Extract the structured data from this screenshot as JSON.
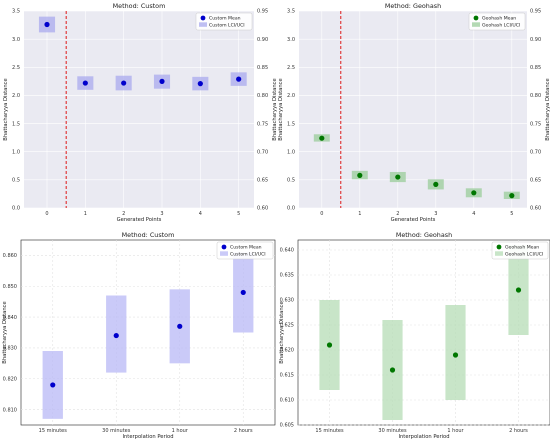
{
  "chart_data": [
    {
      "type": "scatter",
      "title": "Method: Custom",
      "xlabel": "Generated Points",
      "ylabel": "Bhattacharyya Distance",
      "x": [
        0,
        1,
        2,
        3,
        4,
        5
      ],
      "xlim": [
        -0.6,
        5.4
      ],
      "ylim": [
        0.0,
        3.5
      ],
      "yticks": [
        0.0,
        0.5,
        1.0,
        1.5,
        2.0,
        2.5,
        3.0,
        3.5
      ],
      "y2ticks": [
        0.6,
        0.65,
        0.7,
        0.75,
        0.8,
        0.85,
        0.9,
        0.95
      ],
      "grid": true,
      "background": "#eaeaf2",
      "legend_placement": "top-right",
      "vline_x": 0.5,
      "series": [
        {
          "name": "Custom Mean",
          "values": [
            3.26,
            2.22,
            2.22,
            2.25,
            2.21,
            2.29
          ],
          "color": "#0000cc"
        },
        {
          "name": "Custom LCI/UCI",
          "lower": [
            3.12,
            2.1,
            2.09,
            2.12,
            2.09,
            2.17
          ],
          "upper": [
            3.4,
            2.34,
            2.35,
            2.37,
            2.33,
            2.41
          ],
          "color": "#aaaaee"
        }
      ]
    },
    {
      "type": "scatter",
      "title": "Method: Geohash",
      "xlabel": "Generated Points",
      "ylabel": "Bhattacharyya Distance",
      "x": [
        0,
        1,
        2,
        3,
        4,
        5
      ],
      "xlim": [
        -0.6,
        5.4
      ],
      "ylim": [
        0.0,
        3.5
      ],
      "yticks": [
        0.0,
        0.5,
        1.0,
        1.5,
        2.0,
        2.5,
        3.0,
        3.5
      ],
      "y2ticks": [
        0.6,
        0.65,
        0.7,
        0.75,
        0.8,
        0.85,
        0.9,
        0.95
      ],
      "grid": true,
      "background": "#eaeaf2",
      "legend_placement": "top-right",
      "vline_x": 0.5,
      "series": [
        {
          "name": "Geohash Mean",
          "values": [
            1.24,
            0.58,
            0.55,
            0.42,
            0.27,
            0.22
          ],
          "color": "#007700"
        },
        {
          "name": "Geohash LCI/UCI",
          "lower": [
            1.18,
            0.51,
            0.46,
            0.33,
            0.19,
            0.16
          ],
          "upper": [
            1.31,
            0.66,
            0.64,
            0.51,
            0.35,
            0.29
          ],
          "color": "#99cc99"
        }
      ]
    },
    {
      "type": "scatter",
      "title": "Method: Custom",
      "xlabel": "Interpolation Period",
      "ylabel": "Bhattacharyya Distance",
      "categories": [
        "15 minutes",
        "30 minutes",
        "1 hour",
        "2 hours"
      ],
      "ylim": [
        0.805,
        0.865
      ],
      "yticks": [
        0.81,
        0.82,
        0.83,
        0.84,
        0.85,
        0.86
      ],
      "grid": true,
      "background": "#ffffff",
      "legend_placement": "top-right",
      "series": [
        {
          "name": "Custom Mean",
          "values": [
            0.818,
            0.834,
            0.837,
            0.848
          ],
          "color": "#0000cc"
        },
        {
          "name": "Custom LCI/UCI",
          "lower": [
            0.807,
            0.822,
            0.825,
            0.835
          ],
          "upper": [
            0.829,
            0.847,
            0.849,
            0.861
          ],
          "color": "#b8b8f6"
        }
      ]
    },
    {
      "type": "scatter",
      "title": "Method: Geohash",
      "xlabel": "Interpolation Period",
      "ylabel": "Bhattacharyya Distance",
      "categories": [
        "15 minutes",
        "30 minutes",
        "1 hour",
        "2 hours"
      ],
      "ylim": [
        0.605,
        0.642
      ],
      "yticks": [
        0.605,
        0.61,
        0.615,
        0.62,
        0.625,
        0.63,
        0.635,
        0.64
      ],
      "grid": true,
      "background": "#ffffff",
      "legend_placement": "top-right",
      "series": [
        {
          "name": "Geohash Mean",
          "values": [
            0.621,
            0.616,
            0.619,
            0.632
          ],
          "color": "#007700"
        },
        {
          "name": "Geohash LCI/UCI",
          "lower": [
            0.612,
            0.606,
            0.61,
            0.623
          ],
          "upper": [
            0.63,
            0.626,
            0.629,
            0.641
          ],
          "color": "#b5dcb5"
        }
      ]
    }
  ]
}
